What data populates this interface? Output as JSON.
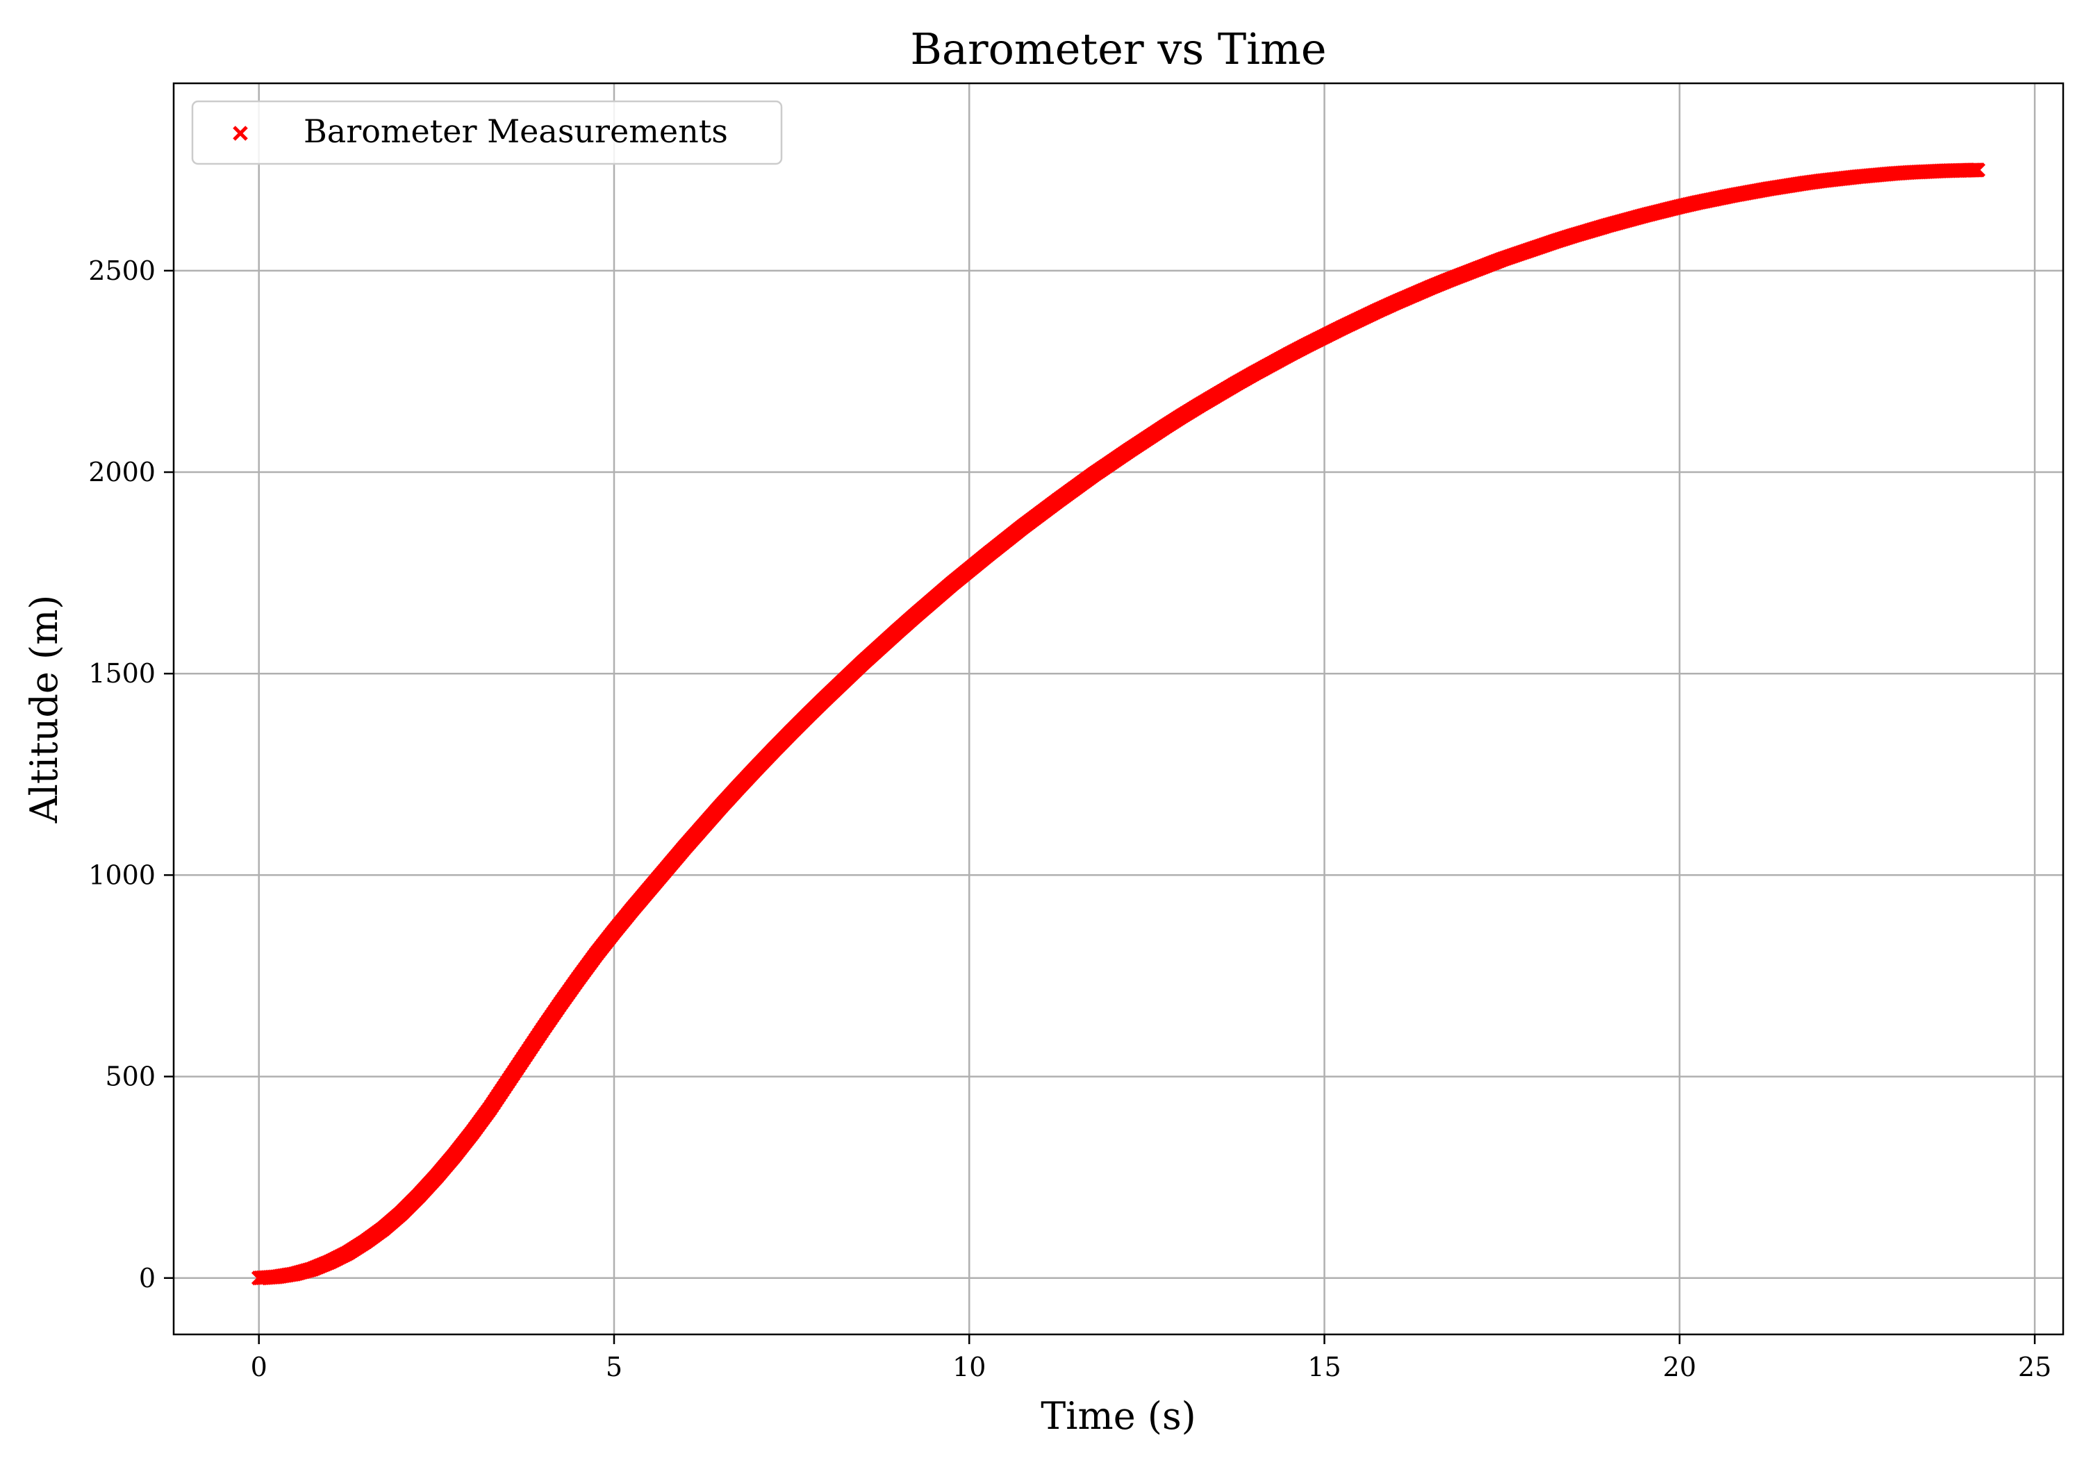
{
  "chart_data": {
    "type": "scatter",
    "title": "Barometer vs Time",
    "xlabel": "Time (s)",
    "ylabel": "Altitude (m)",
    "xlim": [
      -1.2,
      25.4
    ],
    "ylim": [
      -140,
      2965
    ],
    "xticks": [
      0,
      5,
      10,
      15,
      20,
      25
    ],
    "yticks": [
      0,
      500,
      1000,
      1500,
      2000,
      2500
    ],
    "grid": true,
    "legend_position": "top-left",
    "series": [
      {
        "name": "Barometer Measurements",
        "marker": "x",
        "color": "#ff0000",
        "x": [
          0.0,
          0.25,
          0.5,
          0.75,
          1.0,
          1.25,
          1.5,
          1.75,
          2.0,
          2.25,
          2.5,
          2.75,
          3.0,
          3.25,
          3.5,
          3.75,
          4.0,
          4.25,
          4.5,
          4.75,
          5.0,
          5.25,
          5.5,
          5.75,
          6.0,
          6.25,
          6.5,
          6.75,
          7.0,
          7.25,
          7.5,
          7.75,
          8.0,
          8.25,
          8.5,
          8.75,
          9.0,
          9.25,
          9.5,
          9.75,
          10.0,
          10.25,
          10.5,
          10.75,
          11.0,
          11.25,
          11.5,
          11.75,
          12.0,
          12.25,
          12.5,
          12.75,
          13.0,
          13.25,
          13.5,
          13.75,
          14.0,
          14.25,
          14.5,
          14.75,
          15.0,
          15.25,
          15.5,
          15.75,
          16.0,
          16.25,
          16.5,
          16.75,
          17.0,
          17.25,
          17.5,
          17.75,
          18.0,
          18.25,
          18.5,
          18.75,
          19.0,
          19.25,
          19.5,
          19.75,
          20.0,
          20.25,
          20.5,
          20.75,
          21.0,
          21.25,
          21.5,
          21.75,
          22.0,
          22.25,
          22.5,
          22.75,
          23.0,
          23.25,
          23.5,
          23.75,
          24.0,
          24.2
        ],
        "y": [
          0,
          3,
          10,
          22,
          40,
          62,
          90,
          122,
          160,
          204,
          252,
          304,
          360,
          420,
          486,
          552,
          618,
          682,
          744,
          804,
          860,
          914,
          966,
          1018,
          1070,
          1120,
          1170,
          1218,
          1265,
          1311,
          1356,
          1400,
          1443,
          1485,
          1527,
          1567,
          1607,
          1646,
          1684,
          1722,
          1758,
          1794,
          1829,
          1864,
          1897,
          1930,
          1962,
          1994,
          2024,
          2054,
          2083,
          2112,
          2140,
          2167,
          2193,
          2219,
          2244,
          2268,
          2292,
          2315,
          2337,
          2359,
          2380,
          2401,
          2421,
          2440,
          2459,
          2477,
          2494,
          2511,
          2528,
          2543,
          2558,
          2573,
          2587,
          2600,
          2613,
          2625,
          2637,
          2648,
          2659,
          2669,
          2678,
          2687,
          2695,
          2703,
          2710,
          2717,
          2723,
          2728,
          2733,
          2737,
          2741,
          2744,
          2746,
          2748,
          2749,
          2750
        ]
      }
    ]
  }
}
